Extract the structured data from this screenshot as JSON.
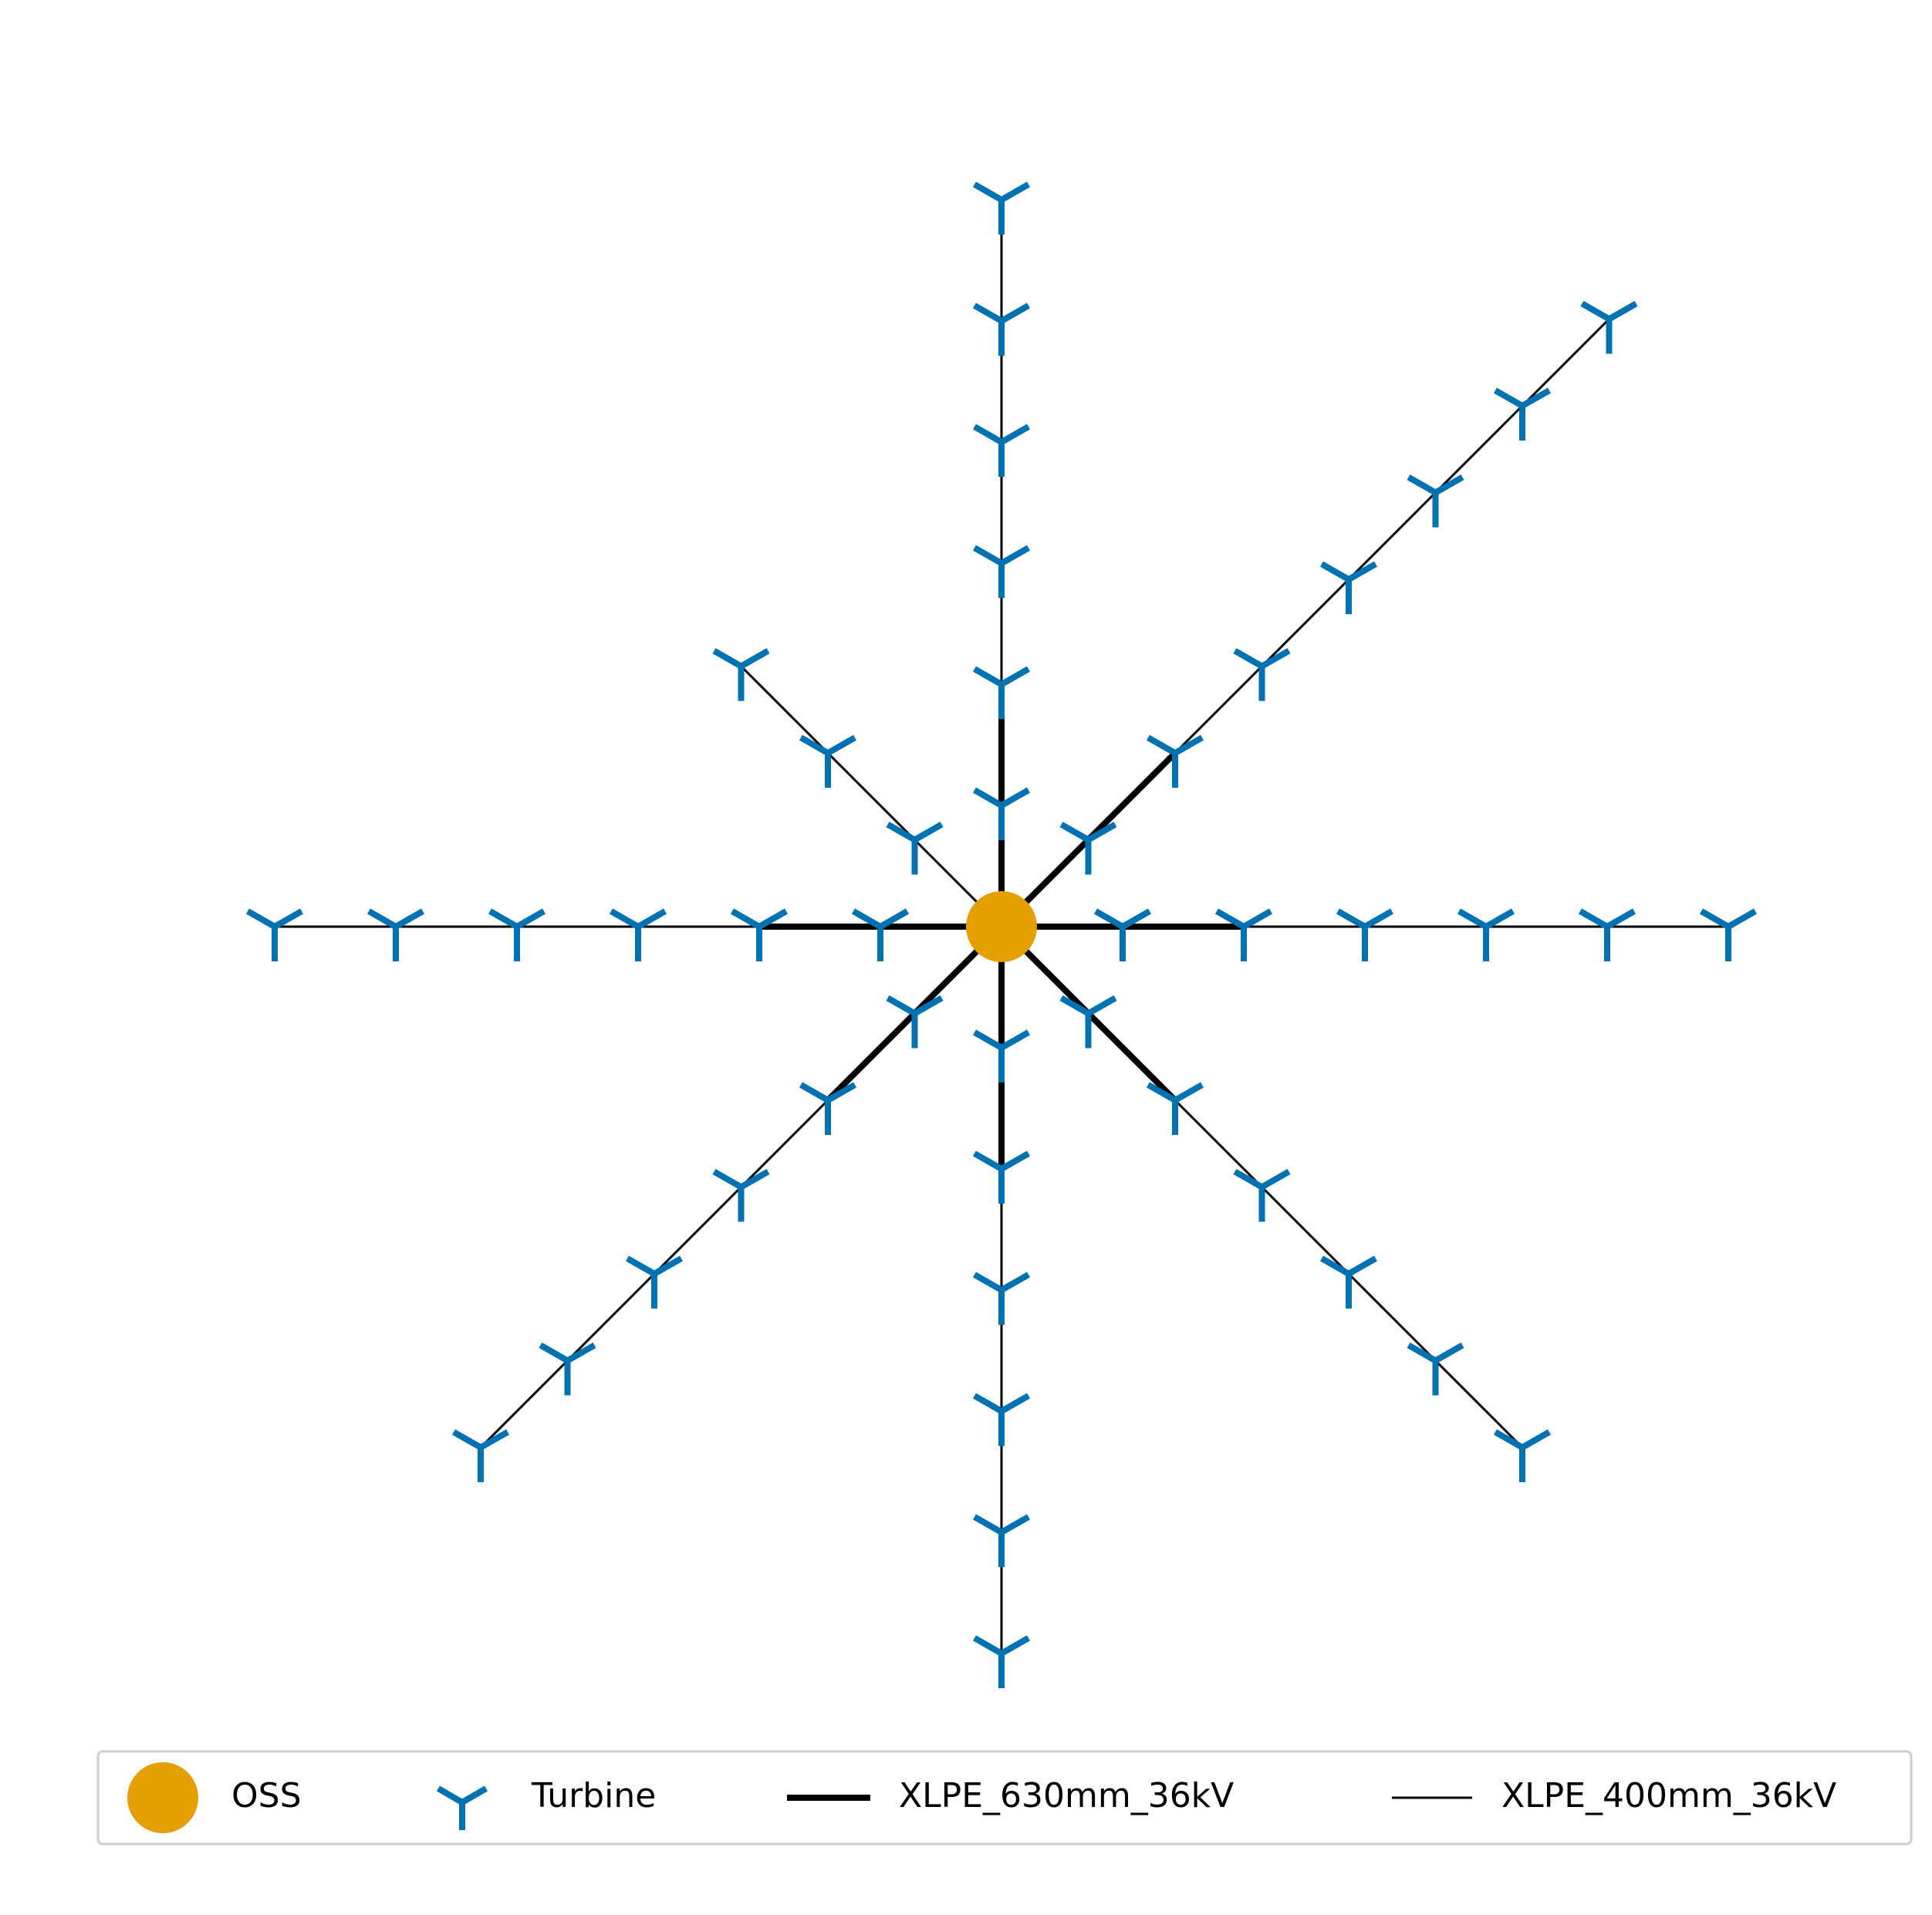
{
  "diagram": {
    "type": "radial-cable-layout",
    "oss": {
      "x": 0,
      "y": 0,
      "label": "OSS"
    },
    "arms": [
      {
        "name": "north",
        "dir": [
          0,
          1
        ],
        "turbines": 6,
        "thick_segments": 2
      },
      {
        "name": "north-east",
        "dir": [
          1,
          1
        ],
        "turbines": 7,
        "thick_segments": 2
      },
      {
        "name": "east",
        "dir": [
          1,
          0
        ],
        "turbines": 6,
        "thick_segments": 2
      },
      {
        "name": "south-east",
        "dir": [
          1,
          -1
        ],
        "turbines": 6,
        "thick_segments": 2
      },
      {
        "name": "south",
        "dir": [
          0,
          -1
        ],
        "turbines": 6,
        "thick_segments": 2
      },
      {
        "name": "south-west",
        "dir": [
          -1,
          -1
        ],
        "turbines": 6,
        "thick_segments": 2
      },
      {
        "name": "west",
        "dir": [
          -1,
          0
        ],
        "turbines": 6,
        "thick_segments": 2
      },
      {
        "name": "north-west",
        "dir": [
          -1,
          1
        ],
        "turbines": 3,
        "thick_segments": 0
      }
    ],
    "colors": {
      "oss": "#E69F00",
      "turbine": "#0072B2",
      "cable": "#000000"
    }
  },
  "legend": {
    "items": [
      {
        "key": "oss",
        "label": "OSS",
        "icon": "circle-marker"
      },
      {
        "key": "turbine",
        "label": "Turbine",
        "icon": "tri-down-marker"
      },
      {
        "key": "thick",
        "label": "XLPE_630mm_36kV",
        "icon": "thick-line"
      },
      {
        "key": "thin",
        "label": "XLPE_400mm_36kV",
        "icon": "thin-line"
      }
    ]
  }
}
